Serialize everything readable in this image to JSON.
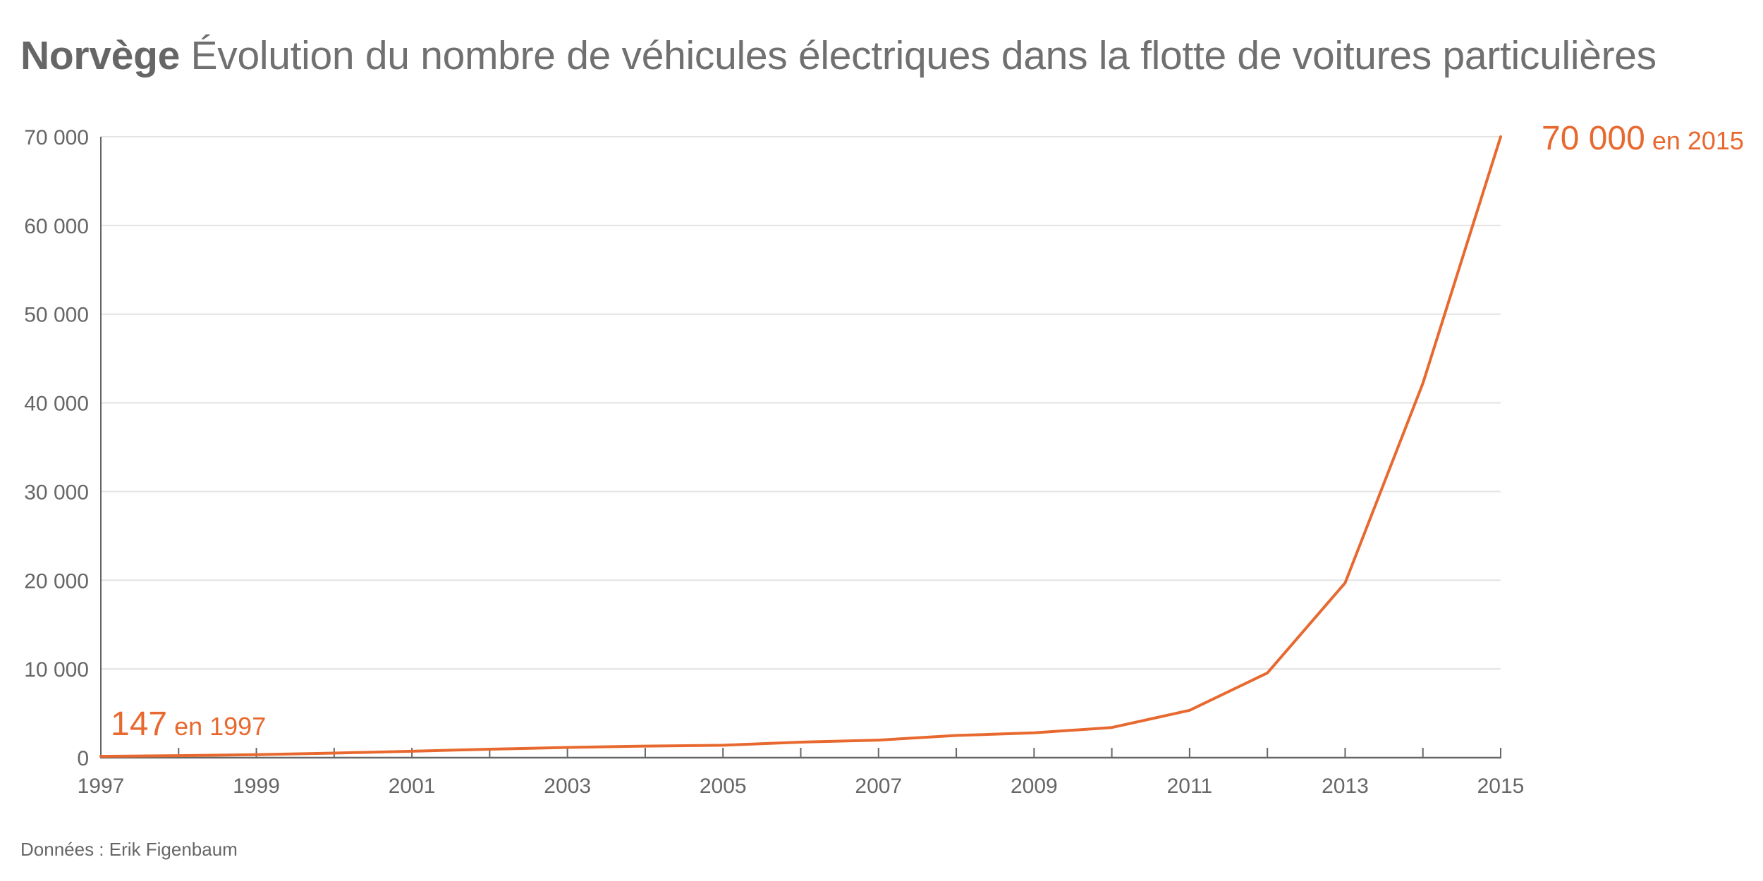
{
  "chart_data": {
    "type": "line",
    "title_bold": "Norvège",
    "title": "Évolution du nombre de véhicules électriques dans la flotte de voitures particulières",
    "xlabel": "",
    "ylabel": "",
    "x": [
      1997,
      1998,
      1999,
      2000,
      2001,
      2002,
      2003,
      2004,
      2005,
      2006,
      2007,
      2008,
      2009,
      2010,
      2011,
      2012,
      2013,
      2014,
      2015
    ],
    "series": [
      {
        "name": "Véhicules électriques",
        "color": "#e8692f",
        "values": [
          147,
          230,
          330,
          520,
          720,
          950,
          1150,
          1300,
          1400,
          1750,
          1980,
          2500,
          2800,
          3400,
          5340,
          9550,
          19700,
          42200,
          70000
        ]
      }
    ],
    "xlim": [
      1997,
      2015
    ],
    "ylim": [
      0,
      70000
    ],
    "xticks": [
      "1997",
      "1999",
      "2001",
      "2003",
      "2005",
      "2007",
      "2009",
      "2011",
      "2013",
      "2015"
    ],
    "xtick_values": [
      1997,
      1999,
      2001,
      2003,
      2005,
      2007,
      2009,
      2011,
      2013,
      2015
    ],
    "yticks": [
      "0",
      "10 000",
      "20 000",
      "30 000",
      "40 000",
      "50 000",
      "60 000",
      "70 000"
    ],
    "ytick_values": [
      0,
      10000,
      20000,
      30000,
      40000,
      50000,
      60000,
      70000
    ],
    "grid": "horizontal",
    "annotations": [
      {
        "name": "start",
        "value_text": "147",
        "suffix": "en 1997",
        "x": 1997,
        "y": 147,
        "placement": "above-right"
      },
      {
        "name": "end",
        "value_text": "70 000",
        "suffix": "en 2015",
        "x": 2015,
        "y": 70000,
        "placement": "right"
      }
    ],
    "source": "Données : Erik Figenbaum"
  }
}
